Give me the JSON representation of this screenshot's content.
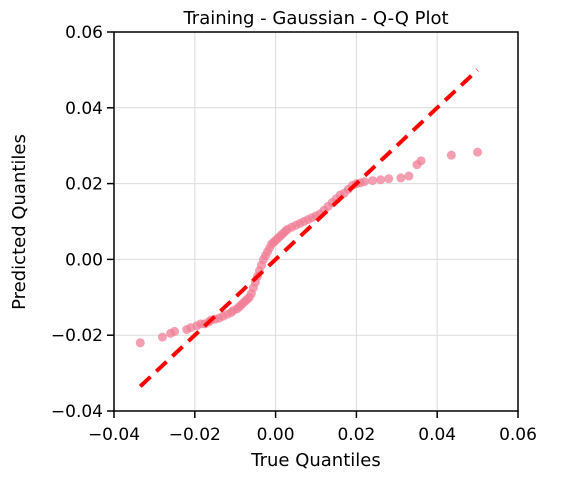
{
  "chart_data": {
    "type": "scatter",
    "title": "Training - Gaussian - Q-Q Plot",
    "xlabel": "True Quantiles",
    "ylabel": "Predicted Quantiles",
    "xlim": [
      -0.04,
      0.06
    ],
    "ylim": [
      -0.04,
      0.06
    ],
    "xticks": [
      -0.04,
      -0.02,
      0.0,
      0.02,
      0.04,
      0.06
    ],
    "yticks": [
      -0.04,
      -0.02,
      0.0,
      0.02,
      0.04,
      0.06
    ],
    "xtick_labels": [
      "−0.04",
      "−0.02",
      "0.00",
      "0.02",
      "0.04",
      "0.06"
    ],
    "ytick_labels": [
      "−0.04",
      "−0.02",
      "0.00",
      "0.02",
      "0.04",
      "0.06"
    ],
    "grid": true,
    "colors": {
      "points": "#f07f97",
      "reference_line": "#ff0000"
    },
    "reference_line": {
      "x": [
        -0.0335,
        0.05
      ],
      "y": [
        -0.0335,
        0.05
      ],
      "style": "dashed"
    },
    "points": {
      "x": [
        -0.0335,
        -0.028,
        -0.026,
        -0.025,
        -0.022,
        -0.021,
        -0.0195,
        -0.0185,
        -0.0175,
        -0.0165,
        -0.016,
        -0.015,
        -0.014,
        -0.013,
        -0.012,
        -0.011,
        -0.0105,
        -0.0095,
        -0.009,
        -0.0085,
        -0.008,
        -0.0075,
        -0.007,
        -0.0065,
        -0.006,
        -0.0055,
        -0.005,
        -0.0045,
        -0.004,
        -0.0035,
        -0.003,
        -0.0025,
        -0.002,
        -0.0015,
        -0.001,
        -0.0005,
        0.0,
        0.0005,
        0.001,
        0.0015,
        0.002,
        0.0025,
        0.003,
        0.004,
        0.005,
        0.006,
        0.007,
        0.008,
        0.009,
        0.01,
        0.011,
        0.012,
        0.013,
        0.014,
        0.015,
        0.016,
        0.017,
        0.018,
        0.019,
        0.02,
        0.021,
        0.022,
        0.024,
        0.026,
        0.028,
        0.031,
        0.033,
        0.035,
        0.036,
        0.0435,
        0.05
      ],
      "y": [
        -0.022,
        -0.0205,
        -0.0195,
        -0.019,
        -0.0185,
        -0.018,
        -0.0175,
        -0.017,
        -0.017,
        -0.0165,
        -0.016,
        -0.0158,
        -0.0155,
        -0.015,
        -0.0145,
        -0.014,
        -0.0135,
        -0.013,
        -0.0125,
        -0.012,
        -0.0115,
        -0.011,
        -0.0105,
        -0.01,
        -0.009,
        -0.0075,
        -0.006,
        -0.0045,
        -0.003,
        -0.0015,
        0.0,
        0.001,
        0.002,
        0.003,
        0.004,
        0.0045,
        0.005,
        0.0055,
        0.006,
        0.0065,
        0.007,
        0.0075,
        0.008,
        0.0085,
        0.009,
        0.0095,
        0.01,
        0.0105,
        0.011,
        0.0115,
        0.012,
        0.013,
        0.014,
        0.015,
        0.016,
        0.017,
        0.0175,
        0.0185,
        0.0195,
        0.02,
        0.0202,
        0.0205,
        0.0208,
        0.021,
        0.0213,
        0.0215,
        0.022,
        0.025,
        0.026,
        0.0275,
        0.0283
      ]
    }
  }
}
